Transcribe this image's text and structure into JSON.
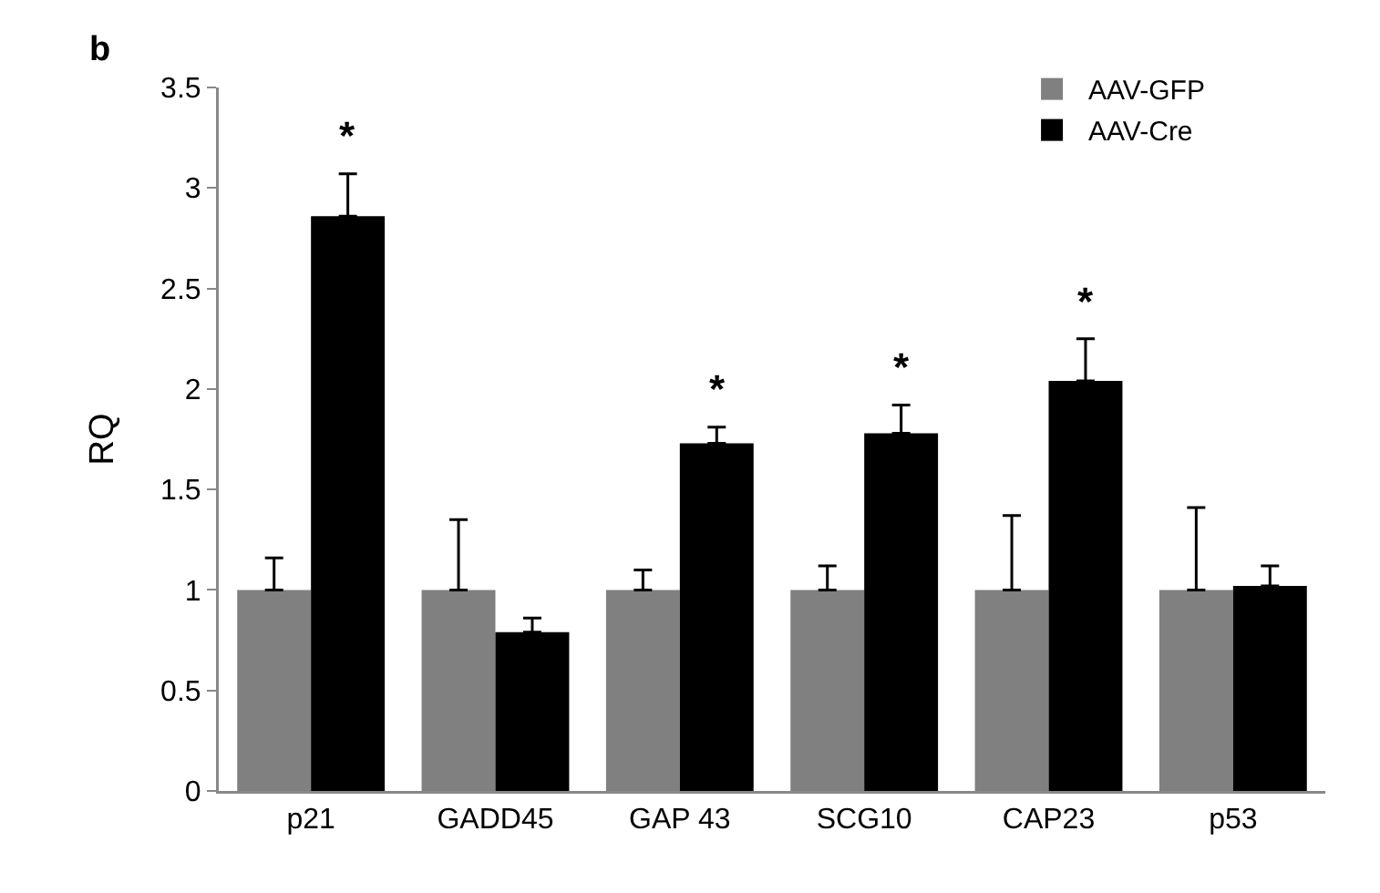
{
  "chart_data": {
    "type": "bar",
    "categories": [
      "p21",
      "GADD45",
      "GAP 43",
      "SCG10",
      "CAP23",
      "p53"
    ],
    "ylabel": "RQ",
    "series": [
      {
        "name": "AAV-GFP",
        "color": "#808080",
        "values": [
          1,
          1,
          1,
          1,
          1,
          1
        ],
        "errors": [
          [
            1,
            1.16
          ],
          [
            1,
            1.35
          ],
          [
            1,
            1.1
          ],
          [
            1,
            1.12
          ],
          [
            1,
            1.37
          ],
          [
            1,
            1.41
          ]
        ]
      },
      {
        "name": "AAV-Cre",
        "color": "#000000",
        "values": [
          2.86,
          0.79,
          1.73,
          1.78,
          2.04,
          1.02
        ],
        "errors": [
          [
            2.86,
            3.07
          ],
          [
            0.79,
            0.86
          ],
          [
            1.73,
            1.81
          ],
          [
            1.78,
            1.92
          ],
          [
            2.04,
            2.25
          ],
          [
            1.02,
            1.12
          ]
        ]
      }
    ],
    "annotations": [
      "b",
      {
        "text": "*",
        "x": "p21",
        "y": 2.86
      },
      {
        "text": "*",
        "x": "GAP 43",
        "y": 1.73
      },
      {
        "text": "*",
        "x": "SCG10",
        "y": 1.78
      },
      {
        "text": "*",
        "x": "CAP23",
        "y": 2.04
      }
    ],
    "ylim": [
      0,
      3.5
    ],
    "yticks": [
      0,
      0.5,
      1,
      1.5,
      2,
      2.5,
      3,
      3.5
    ],
    "grid": false,
    "legend": "top right"
  }
}
